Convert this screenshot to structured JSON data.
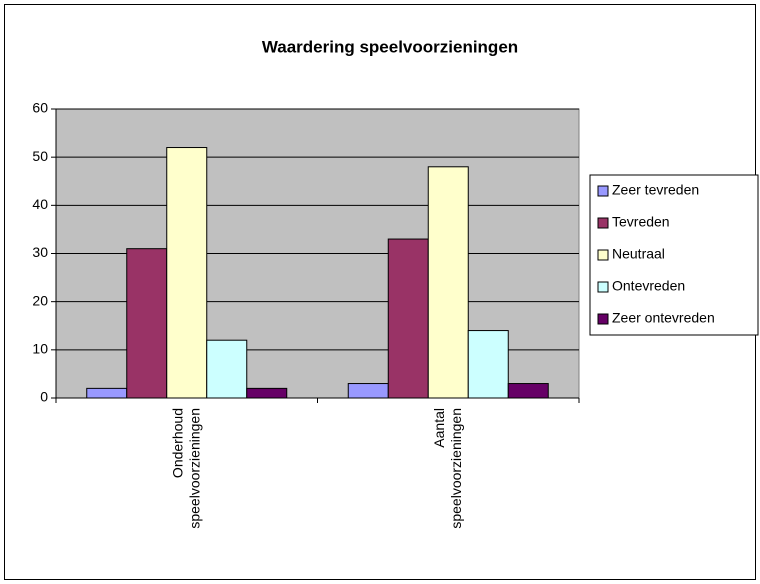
{
  "chart_data": {
    "type": "bar",
    "title": "Waardering speelvoorzieningen",
    "categories": [
      "Onderhoud speelvoorzieningen",
      "Aantal speelvoorzieningen"
    ],
    "series": [
      {
        "name": "Zeer tevreden",
        "color": "#9999ff",
        "values": [
          2,
          3
        ]
      },
      {
        "name": "Tevreden",
        "color": "#993366",
        "values": [
          31,
          33
        ]
      },
      {
        "name": "Neutraal",
        "color": "#ffffcc",
        "values": [
          52,
          48
        ]
      },
      {
        "name": "Ontevreden",
        "color": "#ccffff",
        "values": [
          12,
          14
        ]
      },
      {
        "name": "Zeer ontevreden",
        "color": "#660066",
        "values": [
          2,
          3
        ]
      }
    ],
    "ylim": [
      0,
      60
    ],
    "yticks": [
      0,
      10,
      20,
      30,
      40,
      50,
      60
    ],
    "grid": true,
    "legend": "right"
  }
}
